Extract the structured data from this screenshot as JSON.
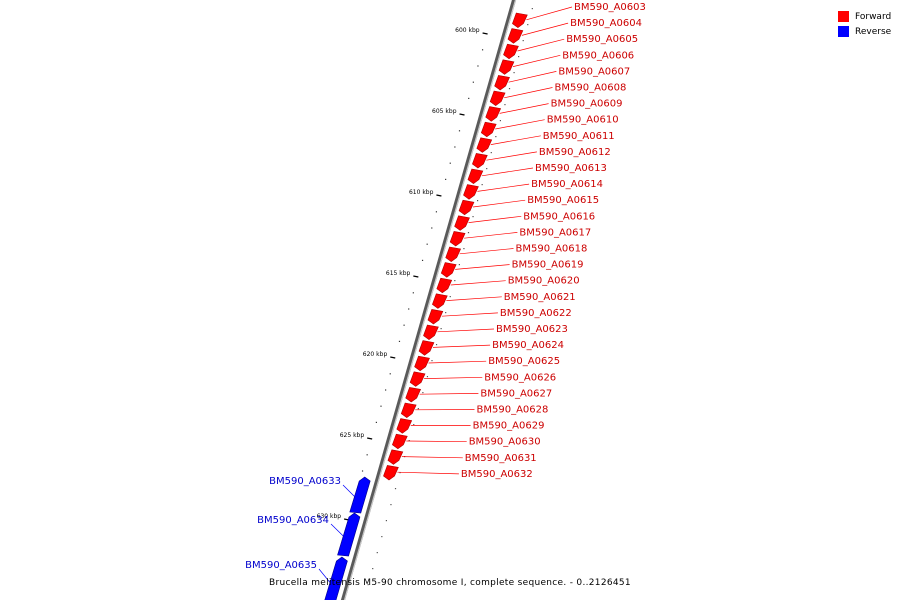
{
  "caption": "Brucella melitensis M5-90 chromosome I, complete sequence. - 0..2126451",
  "legend": [
    {
      "label": "Forward",
      "color": "#ff0000"
    },
    {
      "label": "Reverse",
      "color": "#0000ff"
    }
  ],
  "colors": {
    "forward": "#ff0000",
    "reverse": "#0000ff",
    "backbone": "#808080"
  },
  "ticks": [
    "600 kbp",
    "605 kbp",
    "610 kbp",
    "615 kbp",
    "620 kbp",
    "625 kbp",
    "630 kbp"
  ],
  "features": [
    {
      "name": "BM590_A0603",
      "strand": "forward"
    },
    {
      "name": "BM590_A0604",
      "strand": "forward"
    },
    {
      "name": "BM590_A0605",
      "strand": "forward"
    },
    {
      "name": "BM590_A0606",
      "strand": "forward"
    },
    {
      "name": "BM590_A0607",
      "strand": "forward"
    },
    {
      "name": "BM590_A0608",
      "strand": "forward"
    },
    {
      "name": "BM590_A0609",
      "strand": "forward"
    },
    {
      "name": "BM590_A0610",
      "strand": "forward"
    },
    {
      "name": "BM590_A0611",
      "strand": "forward"
    },
    {
      "name": "BM590_A0612",
      "strand": "forward"
    },
    {
      "name": "BM590_A0613",
      "strand": "forward"
    },
    {
      "name": "BM590_A0614",
      "strand": "forward"
    },
    {
      "name": "BM590_A0615",
      "strand": "forward"
    },
    {
      "name": "BM590_A0616",
      "strand": "forward"
    },
    {
      "name": "BM590_A0617",
      "strand": "forward"
    },
    {
      "name": "BM590_A0618",
      "strand": "forward"
    },
    {
      "name": "BM590_A0619",
      "strand": "forward"
    },
    {
      "name": "BM590_A0620",
      "strand": "forward"
    },
    {
      "name": "BM590_A0621",
      "strand": "forward"
    },
    {
      "name": "BM590_A0622",
      "strand": "forward"
    },
    {
      "name": "BM590_A0623",
      "strand": "forward"
    },
    {
      "name": "BM590_A0624",
      "strand": "forward"
    },
    {
      "name": "BM590_A0625",
      "strand": "forward"
    },
    {
      "name": "BM590_A0626",
      "strand": "forward"
    },
    {
      "name": "BM590_A0627",
      "strand": "forward"
    },
    {
      "name": "BM590_A0628",
      "strand": "forward"
    },
    {
      "name": "BM590_A0629",
      "strand": "forward"
    },
    {
      "name": "BM590_A0630",
      "strand": "forward"
    },
    {
      "name": "BM590_A0631",
      "strand": "forward"
    },
    {
      "name": "BM590_A0632",
      "strand": "forward"
    },
    {
      "name": "BM590_A0633",
      "strand": "reverse"
    },
    {
      "name": "BM590_A0634",
      "strand": "reverse"
    },
    {
      "name": "BM590_A0635",
      "strand": "reverse"
    }
  ]
}
